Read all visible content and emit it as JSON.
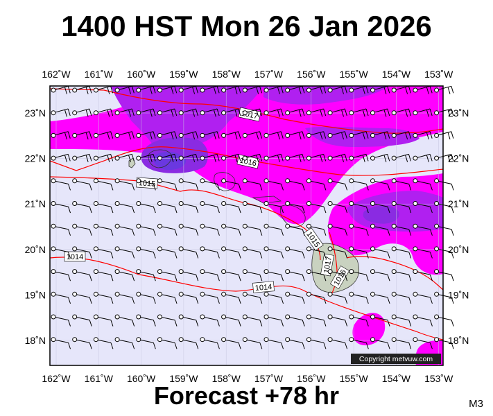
{
  "title": "1400 HST Mon 26 Jan 2026",
  "footer": "Forecast +78 hr",
  "model_label": "M3",
  "copyright": "Copyright metvuw.com",
  "lon_labels": [
    "162˚W",
    "161˚W",
    "160˚W",
    "159˚W",
    "158˚W",
    "157˚W",
    "156˚W",
    "155˚W",
    "154˚W",
    "153˚W"
  ],
  "lat_labels": [
    "23˚N",
    "22˚N",
    "21˚N",
    "20˚N",
    "19˚N",
    "18˚N"
  ],
  "isobar_labels": [
    "1017",
    "1016",
    "1015",
    "1015",
    "1014",
    "1014",
    "1017",
    "1016"
  ],
  "colors": {
    "background": "#e6e6fa",
    "magenta": "#ff00ff",
    "violet": "#b020f0",
    "purple": "#8a2be2",
    "deep_purple": "#6a38e0",
    "isobar": "#ff0000",
    "land": "#c9d2c0"
  }
}
